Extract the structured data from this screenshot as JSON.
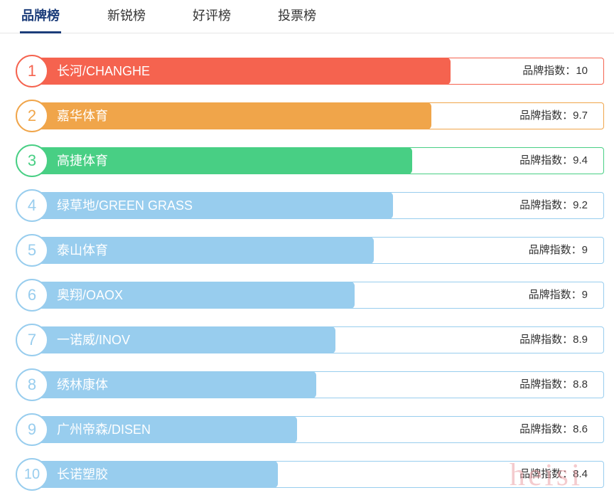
{
  "tabs": [
    {
      "label": "品牌榜",
      "active": true
    },
    {
      "label": "新锐榜",
      "active": false
    },
    {
      "label": "好评榜",
      "active": false
    },
    {
      "label": "投票榜",
      "active": false
    }
  ],
  "score_label": "品牌指数：",
  "ranking": [
    {
      "rank": "1",
      "name": "长河/CHANGHE",
      "score": "10",
      "color": "#f5634f"
    },
    {
      "rank": "2",
      "name": "嘉华体育",
      "score": "9.7",
      "color": "#f0a54a"
    },
    {
      "rank": "3",
      "name": "高捷体育",
      "score": "9.4",
      "color": "#48cf84"
    },
    {
      "rank": "4",
      "name": "绿草地/GREEN GRASS",
      "score": "9.2",
      "color": "#98cdee"
    },
    {
      "rank": "5",
      "name": "泰山体育",
      "score": "9",
      "color": "#98cdee"
    },
    {
      "rank": "6",
      "name": "奥翔/OAOX",
      "score": "9",
      "color": "#98cdee"
    },
    {
      "rank": "7",
      "name": "一诺威/INOV",
      "score": "8.9",
      "color": "#98cdee"
    },
    {
      "rank": "8",
      "name": "绣林康体",
      "score": "8.8",
      "color": "#98cdee"
    },
    {
      "rank": "9",
      "name": "广州帝森/DISEN",
      "score": "8.6",
      "color": "#98cdee"
    },
    {
      "rank": "10",
      "name": "长诺塑胶",
      "score": "8.4",
      "color": "#98cdee"
    }
  ],
  "watermark": "heisi"
}
